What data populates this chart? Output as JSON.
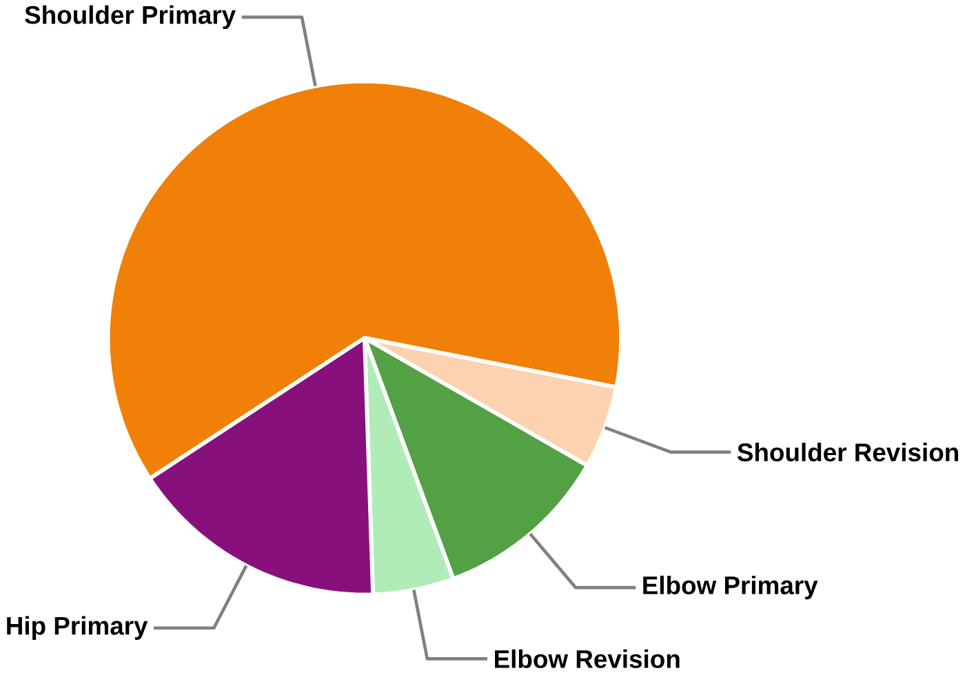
{
  "chart_data": {
    "type": "pie",
    "categories": [
      "Shoulder Primary",
      "Shoulder Revision",
      "Elbow Primary",
      "Elbow Revision",
      "Hip Primary"
    ],
    "values": [
      62.3,
      5.2,
      11.1,
      5.1,
      16.3
    ],
    "colors": [
      "#f08008",
      "#fcd2b0",
      "#54a044",
      "#b0ecb8",
      "#88107c"
    ]
  }
}
